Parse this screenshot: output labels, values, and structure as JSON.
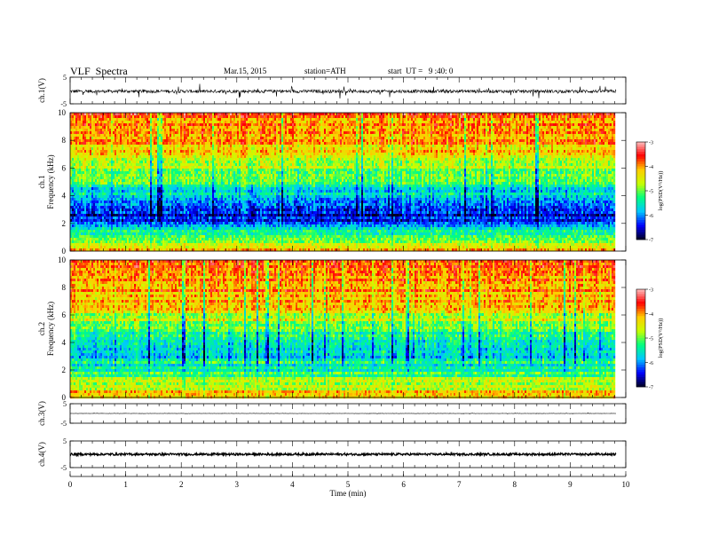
{
  "header": {
    "title": "VLF  Spectra",
    "date": "Mar.15, 2015",
    "station": "station=ATH",
    "start": "start  UT =   9 :40: 0"
  },
  "chart_data": [
    {
      "type": "line",
      "panel": "ch1-waveform",
      "ylabel": "ch.1(V)",
      "ylim": [
        -5,
        5
      ],
      "yticks": [
        "5",
        "-5"
      ],
      "xlim": [
        0,
        10
      ],
      "baseline": -0.3,
      "noise_amplitude": 0.6,
      "spike_amplitude": 2.5
    },
    {
      "type": "heatmap",
      "panel": "ch1-spectrogram",
      "ylabel": "ch.1\nFrequency  (kHz)",
      "ylim": [
        0,
        10
      ],
      "yticks": [
        "0",
        "2",
        "4",
        "6",
        "8",
        "10"
      ],
      "xlim": [
        0,
        10
      ],
      "data_xmax": 9.8,
      "colorbar": {
        "label": "log(PSD(V²/Hz))",
        "range": [
          -7,
          -3
        ],
        "ticks": [
          "-3",
          "-4",
          "-5",
          "-6",
          "-7"
        ]
      },
      "level_profile": [
        {
          "f": 0.0,
          "v": -4.2
        },
        {
          "f": 0.5,
          "v": -4.5
        },
        {
          "f": 1.0,
          "v": -5.1
        },
        {
          "f": 1.5,
          "v": -5.4
        },
        {
          "f": 2.0,
          "v": -6.0
        },
        {
          "f": 2.5,
          "v": -6.6
        },
        {
          "f": 3.0,
          "v": -6.2
        },
        {
          "f": 3.5,
          "v": -5.9
        },
        {
          "f": 4.0,
          "v": -5.6
        },
        {
          "f": 5.0,
          "v": -5.2
        },
        {
          "f": 6.0,
          "v": -4.8
        },
        {
          "f": 7.0,
          "v": -4.3
        },
        {
          "f": 8.0,
          "v": -4.0
        },
        {
          "f": 10.0,
          "v": -3.8
        }
      ]
    },
    {
      "type": "heatmap",
      "panel": "ch2-spectrogram",
      "ylabel": "ch.2\nFrequency  (kHz)",
      "ylim": [
        0,
        10
      ],
      "yticks": [
        "0",
        "2",
        "4",
        "6",
        "8",
        "10"
      ],
      "xlim": [
        0,
        10
      ],
      "data_xmax": 9.8,
      "colorbar": {
        "label": "log(PSD(V²/Hz))",
        "range": [
          -7,
          -3
        ],
        "ticks": [
          "-3",
          "-4",
          "-5",
          "-6",
          "-7"
        ]
      },
      "level_profile": [
        {
          "f": 0.0,
          "v": -4.0
        },
        {
          "f": 0.5,
          "v": -4.4
        },
        {
          "f": 1.0,
          "v": -4.6
        },
        {
          "f": 1.5,
          "v": -5.1
        },
        {
          "f": 2.0,
          "v": -5.4
        },
        {
          "f": 2.5,
          "v": -5.5
        },
        {
          "f": 3.0,
          "v": -5.7
        },
        {
          "f": 3.5,
          "v": -5.8
        },
        {
          "f": 4.0,
          "v": -5.7
        },
        {
          "f": 4.6,
          "v": -5.3
        },
        {
          "f": 5.0,
          "v": -4.9
        },
        {
          "f": 6.0,
          "v": -4.6
        },
        {
          "f": 7.0,
          "v": -4.2
        },
        {
          "f": 8.0,
          "v": -3.9
        },
        {
          "f": 10.0,
          "v": -3.7
        }
      ]
    },
    {
      "type": "line",
      "panel": "ch3-waveform",
      "ylabel": "ch.3(V)",
      "ylim": [
        -5,
        5
      ],
      "yticks": [
        "5",
        "-5"
      ],
      "xlim": [
        0,
        10
      ],
      "baseline": 0.0,
      "noise_amplitude": 0.08,
      "spike_amplitude": 0.2
    },
    {
      "type": "line",
      "panel": "ch4-waveform",
      "ylabel": "ch.4(V)",
      "ylim": [
        -5,
        5
      ],
      "yticks": [
        "5",
        "-5"
      ],
      "xlim": [
        0,
        10
      ],
      "baseline": 0.0,
      "noise_amplitude": 0.4,
      "spike_amplitude": 0.0
    }
  ],
  "xaxis": {
    "label": "Time  (min)",
    "ticks": [
      "0",
      "1",
      "2",
      "3",
      "4",
      "5",
      "6",
      "7",
      "8",
      "9",
      "10"
    ]
  },
  "colors": {
    "stops": [
      "#000020",
      "#0000ff",
      "#00c8ff",
      "#00ff80",
      "#c8ff00",
      "#ffcc00",
      "#ff0000",
      "#ffc0c0"
    ]
  }
}
